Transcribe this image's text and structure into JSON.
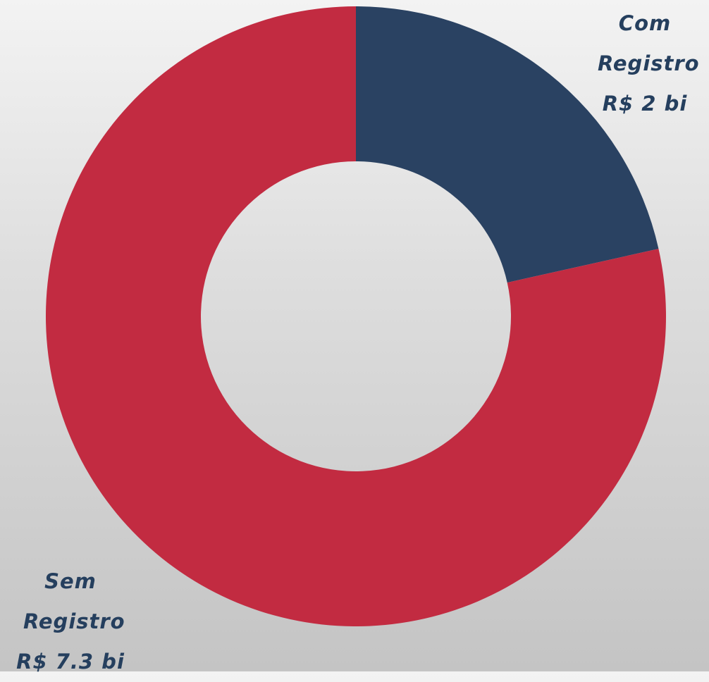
{
  "chart_data": {
    "type": "donut",
    "categories": [
      "Com Registro",
      "Sem Registro"
    ],
    "values": [
      2,
      7.3
    ],
    "value_labels": [
      "R$ 2 bi",
      "R$ 7.3 bi"
    ],
    "colors": [
      "#2a4262",
      "#c22b41"
    ]
  }
}
